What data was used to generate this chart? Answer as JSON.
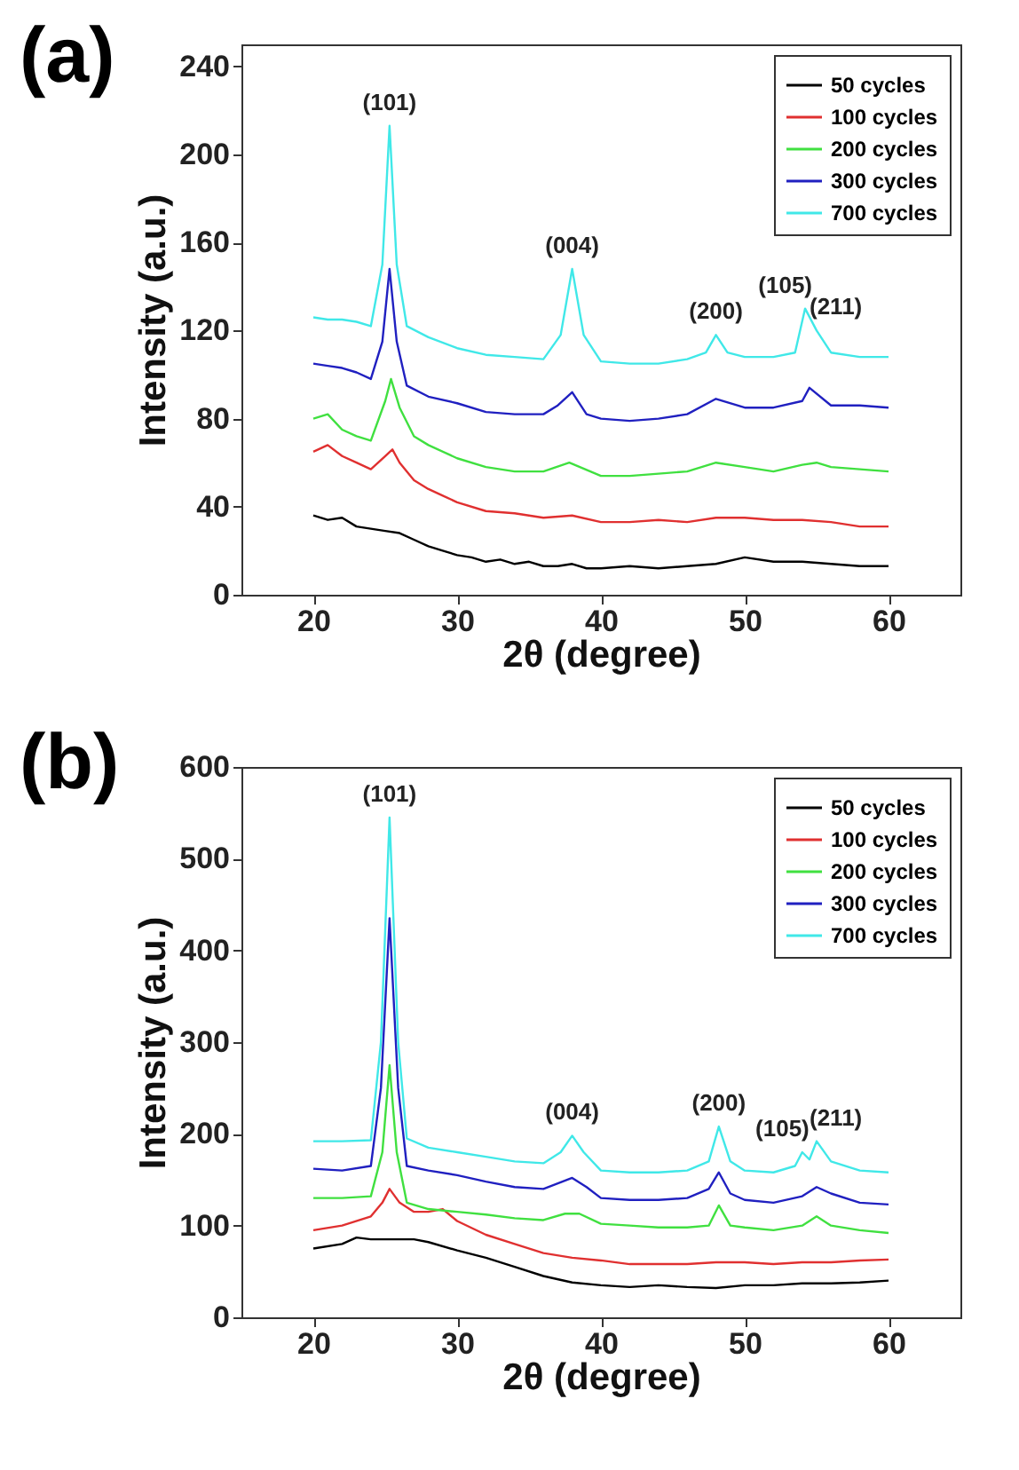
{
  "chart_data": [
    {
      "type": "line",
      "title": "(a)",
      "xlabel": "2θ (degree)",
      "ylabel": "Intensity (a.u.)",
      "xlim": [
        15,
        65
      ],
      "ylim": [
        0,
        250
      ],
      "xticks": [
        20,
        30,
        40,
        50,
        60
      ],
      "yticks": [
        0,
        40,
        80,
        120,
        160,
        200,
        240
      ],
      "grid": false,
      "legend": "top right",
      "annotations": [
        {
          "text": "(101)",
          "x": 25.3,
          "y": 213
        },
        {
          "text": "(004)",
          "x": 38,
          "y": 148
        },
        {
          "text": "(200)",
          "x": 48,
          "y": 118
        },
        {
          "text": "(105)",
          "x": 54.2,
          "y": 130
        },
        {
          "text": "(211)",
          "x": 55,
          "y": 120
        }
      ],
      "series": [
        {
          "name": "50 cycles",
          "color": "#000000",
          "x": [
            20,
            21,
            22,
            23,
            24,
            25,
            26,
            27,
            28,
            29,
            30,
            31,
            32,
            33,
            34,
            35,
            36,
            37,
            38,
            39,
            40,
            42,
            44,
            46,
            48,
            50,
            52,
            54,
            56,
            58,
            60
          ],
          "values": [
            36,
            34,
            35,
            31,
            30,
            29,
            28,
            25,
            22,
            20,
            18,
            17,
            15,
            16,
            14,
            15,
            13,
            13,
            14,
            12,
            12,
            13,
            12,
            13,
            14,
            17,
            15,
            15,
            14,
            13,
            13
          ]
        },
        {
          "name": "100 cycles",
          "color": "#e03030",
          "x": [
            20,
            21,
            22,
            23,
            24,
            25,
            25.5,
            26,
            27,
            28,
            29,
            30,
            32,
            34,
            36,
            38,
            40,
            42,
            44,
            46,
            48,
            50,
            52,
            54,
            56,
            58,
            60
          ],
          "values": [
            65,
            68,
            63,
            60,
            57,
            63,
            66,
            60,
            52,
            48,
            45,
            42,
            38,
            37,
            35,
            36,
            33,
            33,
            34,
            33,
            35,
            35,
            34,
            34,
            33,
            31,
            31
          ]
        },
        {
          "name": "200 cycles",
          "color": "#40e040",
          "x": [
            20,
            21,
            22,
            23,
            24,
            25,
            25.4,
            26,
            27,
            28,
            30,
            32,
            34,
            36,
            37.8,
            40,
            42,
            44,
            46,
            48,
            50,
            52,
            54,
            55,
            56,
            58,
            60
          ],
          "values": [
            80,
            82,
            75,
            72,
            70,
            88,
            98,
            85,
            72,
            68,
            62,
            58,
            56,
            56,
            60,
            54,
            54,
            55,
            56,
            60,
            58,
            56,
            59,
            60,
            58,
            57,
            56
          ]
        },
        {
          "name": "300 cycles",
          "color": "#2020c0",
          "x": [
            20,
            21,
            22,
            23,
            24,
            24.8,
            25.3,
            25.8,
            26.5,
            28,
            30,
            32,
            34,
            36,
            37,
            38,
            39,
            40,
            42,
            44,
            46,
            48,
            50,
            52,
            54,
            54.5,
            56,
            58,
            60
          ],
          "values": [
            105,
            104,
            103,
            101,
            98,
            115,
            148,
            115,
            95,
            90,
            87,
            83,
            82,
            82,
            86,
            92,
            82,
            80,
            79,
            80,
            82,
            89,
            85,
            85,
            88,
            94,
            86,
            86,
            85
          ]
        },
        {
          "name": "700 cycles",
          "color": "#40e8e8",
          "x": [
            20,
            21,
            22,
            23,
            24,
            24.8,
            25.3,
            25.8,
            26.5,
            28,
            30,
            32,
            34,
            36,
            37.2,
            38,
            38.8,
            40,
            42,
            44,
            46,
            47.3,
            48,
            48.8,
            50,
            52,
            53.5,
            54.2,
            55,
            56,
            58,
            60
          ],
          "values": [
            126,
            125,
            125,
            124,
            122,
            150,
            213,
            150,
            122,
            117,
            112,
            109,
            108,
            107,
            118,
            148,
            118,
            106,
            105,
            105,
            107,
            110,
            118,
            110,
            108,
            108,
            110,
            130,
            120,
            110,
            108,
            108
          ]
        }
      ]
    },
    {
      "type": "line",
      "title": "(b)",
      "xlabel": "2θ (degree)",
      "ylabel": "Intensity (a.u.)",
      "xlim": [
        15,
        65
      ],
      "ylim": [
        0,
        600
      ],
      "xticks": [
        20,
        30,
        40,
        50,
        60
      ],
      "yticks": [
        0,
        100,
        200,
        300,
        400,
        500,
        600
      ],
      "grid": false,
      "legend": "top right",
      "annotations": [
        {
          "text": "(101)",
          "x": 25.3,
          "y": 545
        },
        {
          "text": "(004)",
          "x": 38,
          "y": 198
        },
        {
          "text": "(200)",
          "x": 48.2,
          "y": 208
        },
        {
          "text": "(105)",
          "x": 54,
          "y": 180
        },
        {
          "text": "(211)",
          "x": 55,
          "y": 192
        }
      ],
      "series": [
        {
          "name": "50 cycles",
          "color": "#000000",
          "x": [
            20,
            22,
            23,
            24,
            25,
            26,
            27,
            28,
            30,
            32,
            34,
            36,
            38,
            40,
            42,
            44,
            46,
            48,
            50,
            52,
            54,
            56,
            58,
            60
          ],
          "values": [
            75,
            80,
            87,
            85,
            85,
            85,
            85,
            82,
            73,
            65,
            55,
            45,
            38,
            35,
            33,
            35,
            33,
            32,
            35,
            35,
            37,
            37,
            38,
            40
          ]
        },
        {
          "name": "100 cycles",
          "color": "#e03030",
          "x": [
            20,
            22,
            24,
            24.8,
            25.3,
            26,
            27,
            28,
            29,
            30,
            32,
            34,
            36,
            38,
            40,
            42,
            44,
            46,
            48,
            50,
            52,
            54,
            56,
            58,
            60
          ],
          "values": [
            95,
            100,
            110,
            125,
            140,
            125,
            115,
            115,
            118,
            105,
            90,
            80,
            70,
            65,
            62,
            58,
            58,
            58,
            60,
            60,
            58,
            60,
            60,
            62,
            63
          ]
        },
        {
          "name": "200 cycles",
          "color": "#40e040",
          "x": [
            20,
            22,
            24,
            24.8,
            25.3,
            25.8,
            26.5,
            28,
            30,
            32,
            34,
            36,
            37.5,
            38.5,
            40,
            42,
            44,
            46,
            47.5,
            48.2,
            49,
            50,
            52,
            54,
            55,
            56,
            58,
            60
          ],
          "values": [
            130,
            130,
            132,
            180,
            275,
            180,
            125,
            118,
            115,
            112,
            108,
            106,
            113,
            113,
            102,
            100,
            98,
            98,
            100,
            122,
            100,
            98,
            95,
            100,
            110,
            100,
            95,
            92
          ]
        },
        {
          "name": "300 cycles",
          "color": "#2020c0",
          "x": [
            20,
            22,
            24,
            24.7,
            25.3,
            25.9,
            26.5,
            28,
            30,
            32,
            34,
            36,
            38,
            39,
            40,
            42,
            44,
            46,
            47.5,
            48.2,
            49,
            50,
            52,
            54,
            55,
            56,
            58,
            60
          ],
          "values": [
            162,
            160,
            165,
            250,
            435,
            250,
            165,
            160,
            155,
            148,
            142,
            140,
            152,
            142,
            130,
            128,
            128,
            130,
            140,
            158,
            135,
            128,
            125,
            132,
            142,
            135,
            125,
            123
          ]
        },
        {
          "name": "700 cycles",
          "color": "#40e8e8",
          "x": [
            20,
            22,
            24,
            24.7,
            25.3,
            25.9,
            26.5,
            28,
            30,
            32,
            34,
            36,
            37.2,
            38,
            38.8,
            40,
            42,
            44,
            46,
            47.5,
            48.2,
            49,
            50,
            52,
            53.5,
            54,
            54.5,
            55,
            56,
            58,
            60
          ],
          "values": [
            192,
            192,
            193,
            300,
            545,
            300,
            195,
            185,
            180,
            175,
            170,
            168,
            180,
            198,
            180,
            160,
            158,
            158,
            160,
            170,
            208,
            170,
            160,
            158,
            165,
            180,
            172,
            192,
            170,
            160,
            158
          ]
        }
      ]
    }
  ]
}
